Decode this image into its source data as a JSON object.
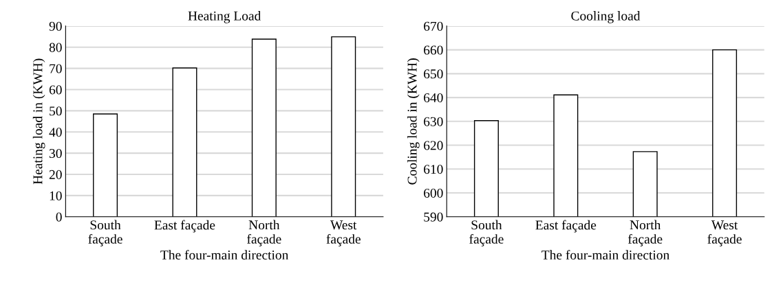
{
  "chart_data": [
    {
      "type": "bar",
      "title": "Heating Load",
      "xlabel": "The four-main direction",
      "ylabel": "Heating load in (KWH)",
      "categories": [
        "South\nfaçade",
        "East façade",
        "North\nfaçade",
        "West\nfaçade"
      ],
      "values": [
        48.5,
        70.2,
        83.8,
        84.9
      ],
      "color": "#ffffff",
      "ylim": [
        0,
        90
      ],
      "yticks": [
        0,
        10,
        20,
        30,
        40,
        50,
        60,
        70,
        80,
        90
      ],
      "grid": "y"
    },
    {
      "type": "bar",
      "title": "Cooling load",
      "xlabel": "The four-main direction",
      "ylabel": "Cooling load in (KWH)",
      "categories": [
        "South\nfaçade",
        "East façade",
        "North\nfaçade",
        "West\nfaçade"
      ],
      "values": [
        630.3,
        641.1,
        617.3,
        660
      ],
      "color": "#ffffff",
      "ylim": [
        590,
        670
      ],
      "yticks": [
        590,
        600,
        610,
        620,
        630,
        640,
        650,
        660,
        670
      ],
      "grid": "y"
    }
  ]
}
